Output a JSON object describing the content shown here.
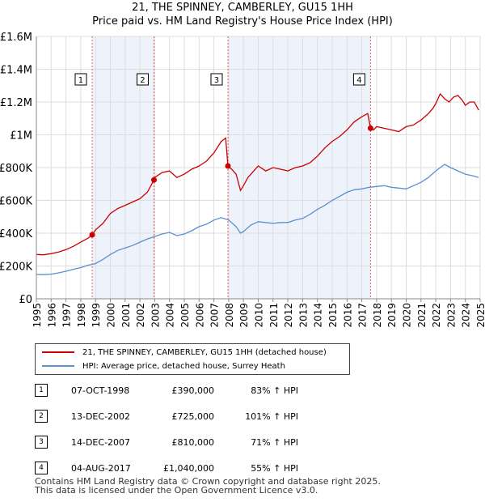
{
  "chart_data": {
    "type": "line",
    "title": "21, THE SPINNEY, CAMBERLEY, GU15 1HH",
    "subtitle": "Price paid vs. HM Land Registry's House Price Index (HPI)",
    "ylim": [
      0,
      1600000
    ],
    "xlim": [
      1995,
      2025
    ],
    "y_ticks": [
      0,
      200000,
      400000,
      600000,
      800000,
      1000000,
      1200000,
      1400000,
      1600000
    ],
    "y_tick_labels": [
      "£0",
      "£200K",
      "£400K",
      "£600K",
      "£800K",
      "£1M",
      "£1.2M",
      "£1.4M",
      "£1.6M"
    ],
    "x_tick_labels": [
      "1995",
      "1996",
      "1997",
      "1998",
      "1999",
      "2000",
      "2001",
      "2002",
      "2003",
      "2004",
      "2005",
      "2006",
      "2007",
      "2008",
      "2009",
      "2010",
      "2011",
      "2012",
      "2013",
      "2014",
      "2015",
      "2016",
      "2017",
      "2018",
      "2019",
      "2020",
      "2021",
      "2022",
      "2023",
      "2024",
      "2025"
    ],
    "shaded_periods": [
      [
        1998.77,
        2002.95
      ],
      [
        2007.95,
        2017.59
      ]
    ],
    "series": [
      {
        "name": "21, THE SPINNEY, CAMBERLEY, GU15 1HH (detached house)",
        "color": "#cc0000",
        "x": [
          1995.0,
          1995.5,
          1996.0,
          1996.5,
          1997.0,
          1997.5,
          1998.0,
          1998.5,
          1998.77,
          1999.0,
          1999.5,
          2000.0,
          2000.5,
          2001.0,
          2001.5,
          2002.0,
          2002.5,
          2002.95,
          2003.0,
          2003.5,
          2004.0,
          2004.5,
          2005.0,
          2005.5,
          2006.0,
          2006.5,
          2007.0,
          2007.5,
          2007.8,
          2007.95,
          2008.2,
          2008.5,
          2008.8,
          2009.0,
          2009.3,
          2009.6,
          2010.0,
          2010.5,
          2011.0,
          2011.5,
          2012.0,
          2012.5,
          2013.0,
          2013.5,
          2014.0,
          2014.5,
          2015.0,
          2015.5,
          2016.0,
          2016.5,
          2017.0,
          2017.4,
          2017.59,
          2017.8,
          2018.0,
          2018.5,
          2019.0,
          2019.5,
          2020.0,
          2020.5,
          2021.0,
          2021.5,
          2021.8,
          2022.0,
          2022.3,
          2022.6,
          2022.9,
          2023.2,
          2023.5,
          2023.8,
          2024.0,
          2024.3,
          2024.6,
          2024.9
        ],
        "values": [
          270000,
          268000,
          275000,
          285000,
          300000,
          320000,
          345000,
          370000,
          390000,
          420000,
          460000,
          520000,
          550000,
          570000,
          590000,
          610000,
          650000,
          725000,
          740000,
          770000,
          780000,
          740000,
          760000,
          790000,
          810000,
          840000,
          890000,
          960000,
          980000,
          810000,
          790000,
          760000,
          660000,
          690000,
          740000,
          770000,
          810000,
          780000,
          800000,
          790000,
          780000,
          800000,
          810000,
          830000,
          870000,
          920000,
          960000,
          990000,
          1030000,
          1080000,
          1110000,
          1130000,
          1040000,
          1030000,
          1050000,
          1040000,
          1030000,
          1020000,
          1050000,
          1060000,
          1090000,
          1130000,
          1160000,
          1190000,
          1250000,
          1220000,
          1200000,
          1230000,
          1240000,
          1210000,
          1180000,
          1200000,
          1200000,
          1150000
        ]
      },
      {
        "name": "HPI: Average price, detached house, Surrey Heath",
        "color": "#5b8fcf",
        "x": [
          1995.0,
          1995.5,
          1996.0,
          1996.5,
          1997.0,
          1997.5,
          1998.0,
          1998.5,
          1999.0,
          1999.5,
          2000.0,
          2000.5,
          2001.0,
          2001.5,
          2002.0,
          2002.5,
          2003.0,
          2003.5,
          2004.0,
          2004.5,
          2005.0,
          2005.5,
          2006.0,
          2006.5,
          2007.0,
          2007.5,
          2008.0,
          2008.5,
          2008.8,
          2009.0,
          2009.5,
          2010.0,
          2010.5,
          2011.0,
          2011.5,
          2012.0,
          2012.5,
          2013.0,
          2013.5,
          2014.0,
          2014.5,
          2015.0,
          2015.5,
          2016.0,
          2016.5,
          2017.0,
          2017.5,
          2018.0,
          2018.5,
          2019.0,
          2019.5,
          2020.0,
          2020.5,
          2021.0,
          2021.5,
          2022.0,
          2022.3,
          2022.6,
          2023.0,
          2023.5,
          2024.0,
          2024.5,
          2024.9
        ],
        "values": [
          148000,
          147000,
          150000,
          158000,
          168000,
          180000,
          190000,
          205000,
          215000,
          240000,
          270000,
          295000,
          310000,
          325000,
          345000,
          365000,
          380000,
          395000,
          405000,
          385000,
          395000,
          415000,
          440000,
          455000,
          480000,
          495000,
          480000,
          440000,
          400000,
          410000,
          450000,
          470000,
          465000,
          460000,
          465000,
          465000,
          480000,
          490000,
          515000,
          545000,
          570000,
          600000,
          625000,
          650000,
          665000,
          670000,
          680000,
          685000,
          690000,
          680000,
          675000,
          670000,
          690000,
          710000,
          740000,
          780000,
          800000,
          820000,
          800000,
          780000,
          760000,
          750000,
          740000
        ]
      }
    ],
    "sale_points": [
      {
        "label": "1",
        "x": 1998.77,
        "value": 390000
      },
      {
        "label": "2",
        "x": 2002.95,
        "value": 725000
      },
      {
        "label": "3",
        "x": 2007.95,
        "value": 810000
      },
      {
        "label": "4",
        "x": 2017.59,
        "value": 1040000
      }
    ]
  },
  "legend": {
    "property_label": "21, THE SPINNEY, CAMBERLEY, GU15 1HH (detached house)",
    "hpi_label": "HPI: Average price, detached house, Surrey Heath"
  },
  "sales": [
    {
      "num": "1",
      "date": "07-OCT-1998",
      "price": "£390,000",
      "hpi": "83% ↑ HPI"
    },
    {
      "num": "2",
      "date": "13-DEC-2002",
      "price": "£725,000",
      "hpi": "101% ↑ HPI"
    },
    {
      "num": "3",
      "date": "14-DEC-2007",
      "price": "£810,000",
      "hpi": "71% ↑ HPI"
    },
    {
      "num": "4",
      "date": "04-AUG-2017",
      "price": "£1,040,000",
      "hpi": "55% ↑ HPI"
    }
  ],
  "footer": {
    "line1": "Contains HM Land Registry data © Crown copyright and database right 2025.",
    "line2": "This data is licensed under the Open Government Licence v3.0."
  }
}
